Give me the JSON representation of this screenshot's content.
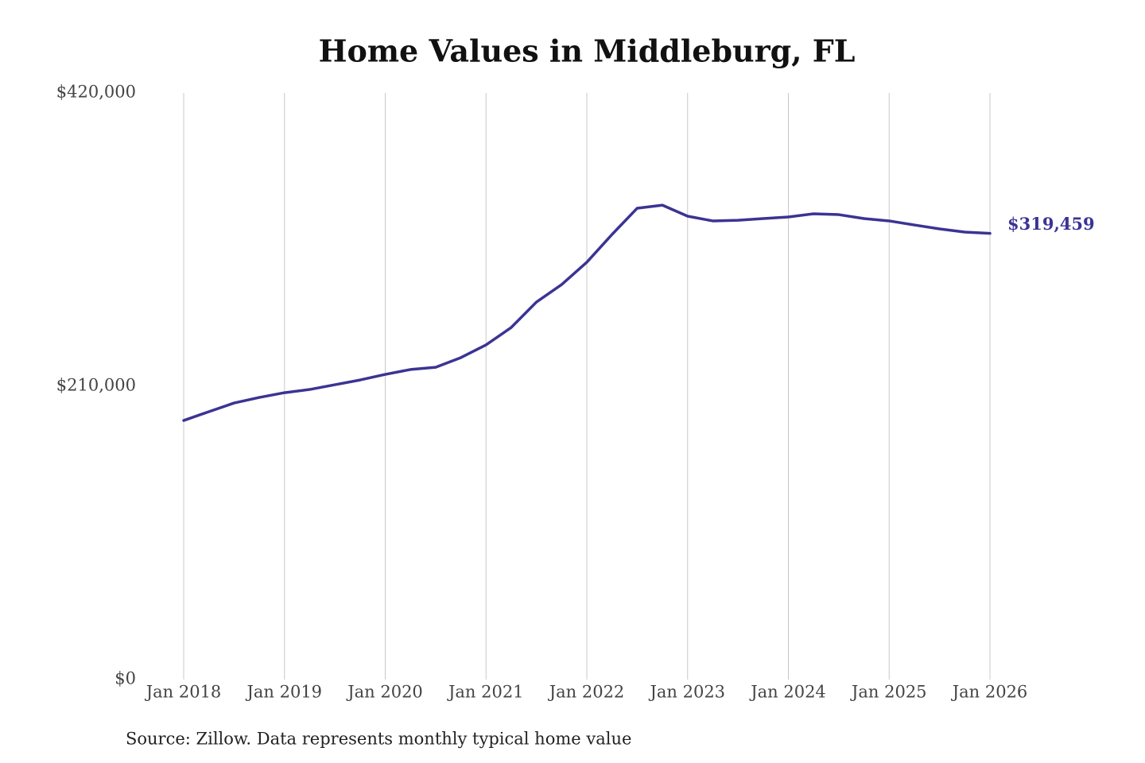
{
  "chart_data": {
    "type": "line",
    "title": "Home Values in Middleburg, FL",
    "source": "Source: Zillow. Data represents monthly typical home value",
    "x": [
      2018,
      2018.25,
      2018.5,
      2018.75,
      2019,
      2019.25,
      2019.5,
      2019.75,
      2020,
      2020.25,
      2020.5,
      2020.75,
      2021,
      2021.25,
      2021.5,
      2021.75,
      2022,
      2022.25,
      2022.5,
      2022.75,
      2023,
      2023.25,
      2023.5,
      2023.75,
      2024,
      2024.25,
      2024.5,
      2024.75,
      2025,
      2025.25,
      2025.5,
      2025.75,
      2026
    ],
    "series": [
      {
        "name": "Home value",
        "color": "#3b3494",
        "values": [
          185500,
          191800,
          198000,
          202000,
          205400,
          207700,
          211100,
          214500,
          218500,
          222000,
          223600,
          230500,
          239600,
          252100,
          270300,
          282800,
          298800,
          318700,
          337500,
          339700,
          331800,
          328400,
          328900,
          330100,
          331200,
          333500,
          332900,
          330100,
          328400,
          325500,
          322700,
          320400,
          319459
        ],
        "value_labels": [
          null,
          null,
          null,
          null,
          null,
          null,
          null,
          null,
          null,
          null,
          null,
          null,
          null,
          null,
          null,
          null,
          null,
          null,
          null,
          null,
          null,
          null,
          null,
          null,
          null,
          null,
          null,
          null,
          null,
          null,
          null,
          null,
          "$319,459"
        ]
      }
    ],
    "xlim": [
      2018,
      2026
    ],
    "xticks": [
      {
        "value": 2018,
        "label": "Jan 2018"
      },
      {
        "value": 2019,
        "label": "Jan 2019"
      },
      {
        "value": 2020,
        "label": "Jan 2020"
      },
      {
        "value": 2021,
        "label": "Jan 2021"
      },
      {
        "value": 2022,
        "label": "Jan 2022"
      },
      {
        "value": 2023,
        "label": "Jan 2023"
      },
      {
        "value": 2024,
        "label": "Jan 2024"
      },
      {
        "value": 2025,
        "label": "Jan 2025"
      },
      {
        "value": 2026,
        "label": "Jan 2026"
      }
    ],
    "ylim": [
      0,
      420000
    ],
    "yticks": [
      {
        "value": 0,
        "label": "$0"
      },
      {
        "value": 210000,
        "label": "$210,000"
      },
      {
        "value": 420000,
        "label": "$420,000"
      }
    ],
    "grid": true
  }
}
